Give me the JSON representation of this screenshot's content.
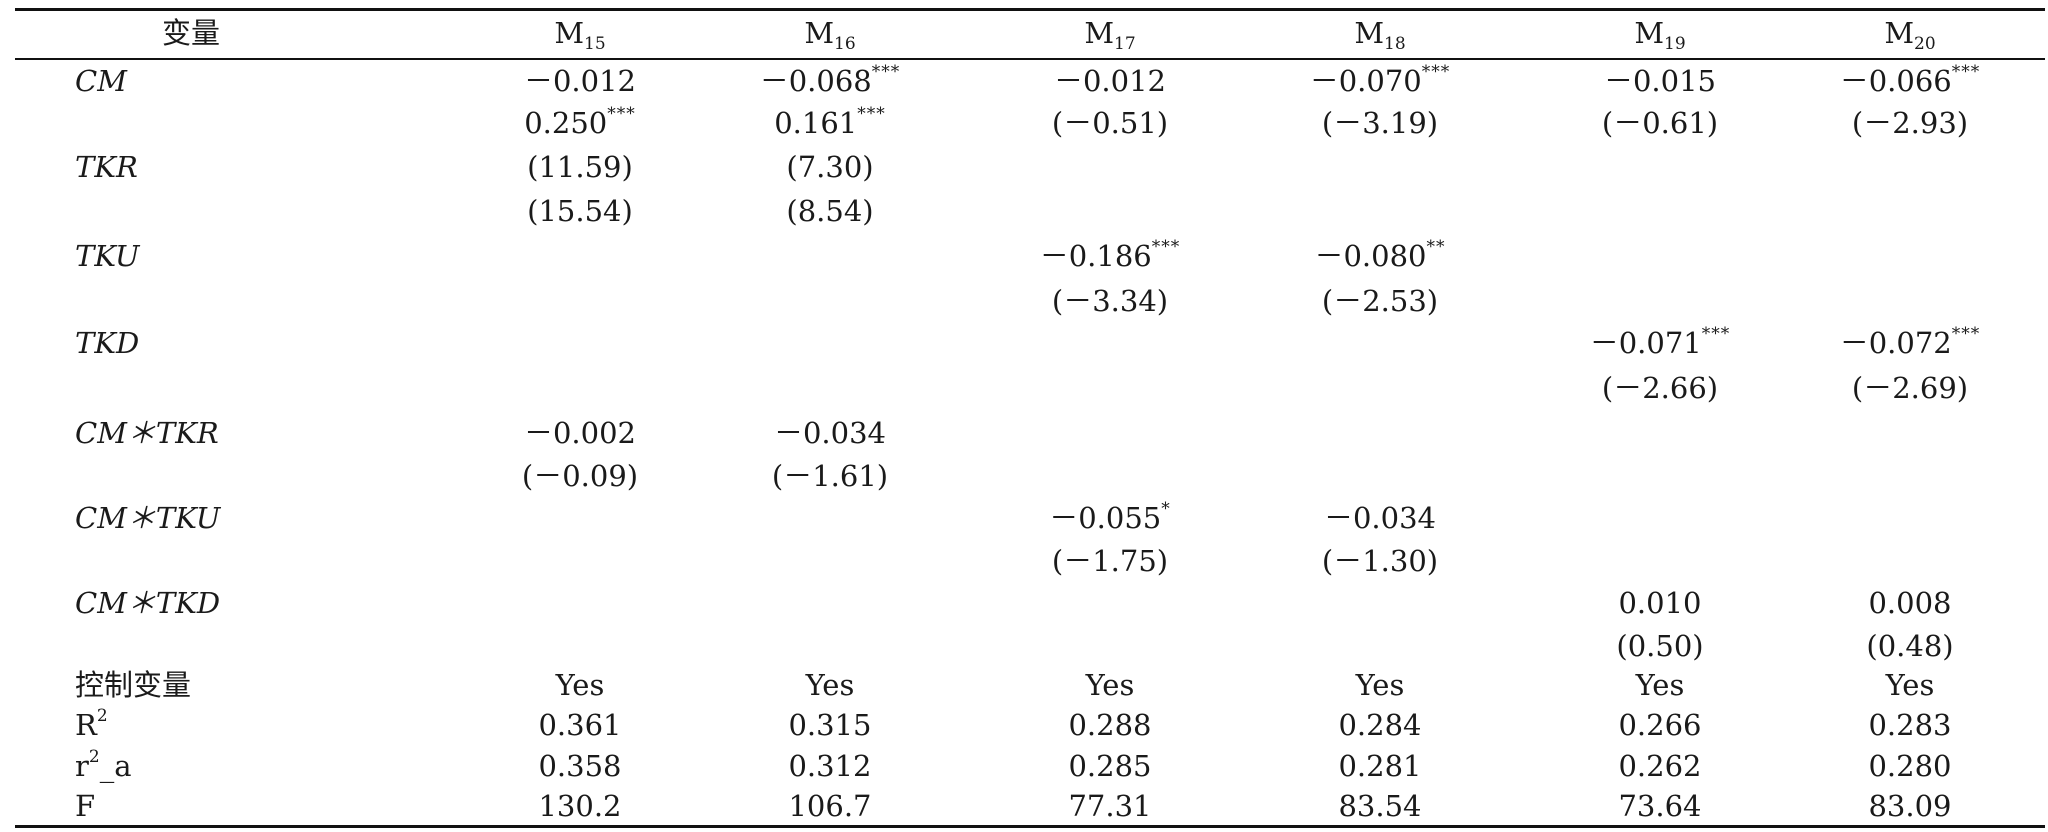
{
  "table": {
    "header": {
      "variable_label": "变量",
      "models": [
        {
          "base": "M",
          "sub": "15"
        },
        {
          "base": "M",
          "sub": "16"
        },
        {
          "base": "M",
          "sub": "17"
        },
        {
          "base": "M",
          "sub": "18"
        },
        {
          "base": "M",
          "sub": "19"
        },
        {
          "base": "M",
          "sub": "20"
        }
      ]
    },
    "rows": [
      {
        "label": "CM",
        "italic": true,
        "cells": [
          {
            "v": "－0.012",
            "s": ""
          },
          {
            "v": "－0.068",
            "s": "***"
          },
          {
            "v": "－0.012",
            "s": ""
          },
          {
            "v": "－0.070",
            "s": "***"
          },
          {
            "v": "－0.015",
            "s": ""
          },
          {
            "v": "－0.066",
            "s": "***"
          }
        ]
      },
      {
        "label": "",
        "italic": false,
        "cells": [
          {
            "v": "0.250",
            "s": "***"
          },
          {
            "v": "0.161",
            "s": "***"
          },
          {
            "v": "(－0.51)",
            "s": ""
          },
          {
            "v": "(－3.19)",
            "s": ""
          },
          {
            "v": "(－0.61)",
            "s": ""
          },
          {
            "v": "(－2.93)",
            "s": ""
          }
        ]
      },
      {
        "label": "TKR",
        "italic": true,
        "cells": [
          {
            "v": "(11.59)",
            "s": ""
          },
          {
            "v": "(7.30)",
            "s": ""
          },
          {
            "v": "",
            "s": ""
          },
          {
            "v": "",
            "s": ""
          },
          {
            "v": "",
            "s": ""
          },
          {
            "v": "",
            "s": ""
          }
        ]
      },
      {
        "label": "",
        "italic": false,
        "cells": [
          {
            "v": "(15.54)",
            "s": ""
          },
          {
            "v": "(8.54)",
            "s": ""
          },
          {
            "v": "",
            "s": ""
          },
          {
            "v": "",
            "s": ""
          },
          {
            "v": "",
            "s": ""
          },
          {
            "v": "",
            "s": ""
          }
        ]
      },
      {
        "label": "TKU",
        "italic": true,
        "cells": [
          {
            "v": "",
            "s": ""
          },
          {
            "v": "",
            "s": ""
          },
          {
            "v": "－0.186",
            "s": "***"
          },
          {
            "v": "－0.080",
            "s": "**"
          },
          {
            "v": "",
            "s": ""
          },
          {
            "v": "",
            "s": ""
          }
        ]
      },
      {
        "label": "",
        "italic": false,
        "cells": [
          {
            "v": "",
            "s": ""
          },
          {
            "v": "",
            "s": ""
          },
          {
            "v": "(－3.34)",
            "s": ""
          },
          {
            "v": "(－2.53)",
            "s": ""
          },
          {
            "v": "",
            "s": ""
          },
          {
            "v": "",
            "s": ""
          }
        ]
      },
      {
        "label": "TKD",
        "italic": true,
        "cells": [
          {
            "v": "",
            "s": ""
          },
          {
            "v": "",
            "s": ""
          },
          {
            "v": "",
            "s": ""
          },
          {
            "v": "",
            "s": ""
          },
          {
            "v": "－0.071",
            "s": "***"
          },
          {
            "v": "－0.072",
            "s": "***"
          }
        ]
      },
      {
        "label": "",
        "italic": false,
        "cells": [
          {
            "v": "",
            "s": ""
          },
          {
            "v": "",
            "s": ""
          },
          {
            "v": "",
            "s": ""
          },
          {
            "v": "",
            "s": ""
          },
          {
            "v": "(－2.66)",
            "s": ""
          },
          {
            "v": "(－2.69)",
            "s": ""
          }
        ]
      },
      {
        "label": "CM＊TKR",
        "italic": true,
        "cells": [
          {
            "v": "－0.002",
            "s": ""
          },
          {
            "v": "－0.034",
            "s": ""
          },
          {
            "v": "",
            "s": ""
          },
          {
            "v": "",
            "s": ""
          },
          {
            "v": "",
            "s": ""
          },
          {
            "v": "",
            "s": ""
          }
        ]
      },
      {
        "label": "",
        "italic": false,
        "cells": [
          {
            "v": "(－0.09)",
            "s": ""
          },
          {
            "v": "(－1.61)",
            "s": ""
          },
          {
            "v": "",
            "s": ""
          },
          {
            "v": "",
            "s": ""
          },
          {
            "v": "",
            "s": ""
          },
          {
            "v": "",
            "s": ""
          }
        ]
      },
      {
        "label": "CM＊TKU",
        "italic": true,
        "cells": [
          {
            "v": "",
            "s": ""
          },
          {
            "v": "",
            "s": ""
          },
          {
            "v": "－0.055",
            "s": "*"
          },
          {
            "v": "－0.034",
            "s": ""
          },
          {
            "v": "",
            "s": ""
          },
          {
            "v": "",
            "s": ""
          }
        ]
      },
      {
        "label": "",
        "italic": false,
        "cells": [
          {
            "v": "",
            "s": ""
          },
          {
            "v": "",
            "s": ""
          },
          {
            "v": "(－1.75)",
            "s": ""
          },
          {
            "v": "(－1.30)",
            "s": ""
          },
          {
            "v": "",
            "s": ""
          },
          {
            "v": "",
            "s": ""
          }
        ]
      },
      {
        "label": "CM＊TKD",
        "italic": true,
        "cells": [
          {
            "v": "",
            "s": ""
          },
          {
            "v": "",
            "s": ""
          },
          {
            "v": "",
            "s": ""
          },
          {
            "v": "",
            "s": ""
          },
          {
            "v": "0.010",
            "s": ""
          },
          {
            "v": "0.008",
            "s": ""
          }
        ]
      },
      {
        "label": "",
        "italic": false,
        "cells": [
          {
            "v": "",
            "s": ""
          },
          {
            "v": "",
            "s": ""
          },
          {
            "v": "",
            "s": ""
          },
          {
            "v": "",
            "s": ""
          },
          {
            "v": "(0.50)",
            "s": ""
          },
          {
            "v": "(0.48)",
            "s": ""
          }
        ]
      },
      {
        "label": "控制变量",
        "italic": false,
        "cells": [
          {
            "v": "Yes",
            "s": ""
          },
          {
            "v": "Yes",
            "s": ""
          },
          {
            "v": "Yes",
            "s": ""
          },
          {
            "v": "Yes",
            "s": ""
          },
          {
            "v": "Yes",
            "s": ""
          },
          {
            "v": "Yes",
            "s": ""
          }
        ]
      },
      {
        "label": "R",
        "label_sup": "2",
        "italic": false,
        "cells": [
          {
            "v": "0.361",
            "s": ""
          },
          {
            "v": "0.315",
            "s": ""
          },
          {
            "v": "0.288",
            "s": ""
          },
          {
            "v": "0.284",
            "s": ""
          },
          {
            "v": "0.266",
            "s": ""
          },
          {
            "v": "0.283",
            "s": ""
          }
        ]
      },
      {
        "label": "r",
        "label_sup": "2",
        "label_after": "_a",
        "italic": false,
        "cells": [
          {
            "v": "0.358",
            "s": ""
          },
          {
            "v": "0.312",
            "s": ""
          },
          {
            "v": "0.285",
            "s": ""
          },
          {
            "v": "0.281",
            "s": ""
          },
          {
            "v": "0.262",
            "s": ""
          },
          {
            "v": "0.280",
            "s": ""
          }
        ]
      },
      {
        "label": "F",
        "italic": false,
        "cells": [
          {
            "v": "130.2",
            "s": ""
          },
          {
            "v": "106.7",
            "s": ""
          },
          {
            "v": "77.31",
            "s": ""
          },
          {
            "v": "83.54",
            "s": ""
          },
          {
            "v": "73.64",
            "s": ""
          },
          {
            "v": "83.09",
            "s": ""
          }
        ]
      }
    ]
  }
}
